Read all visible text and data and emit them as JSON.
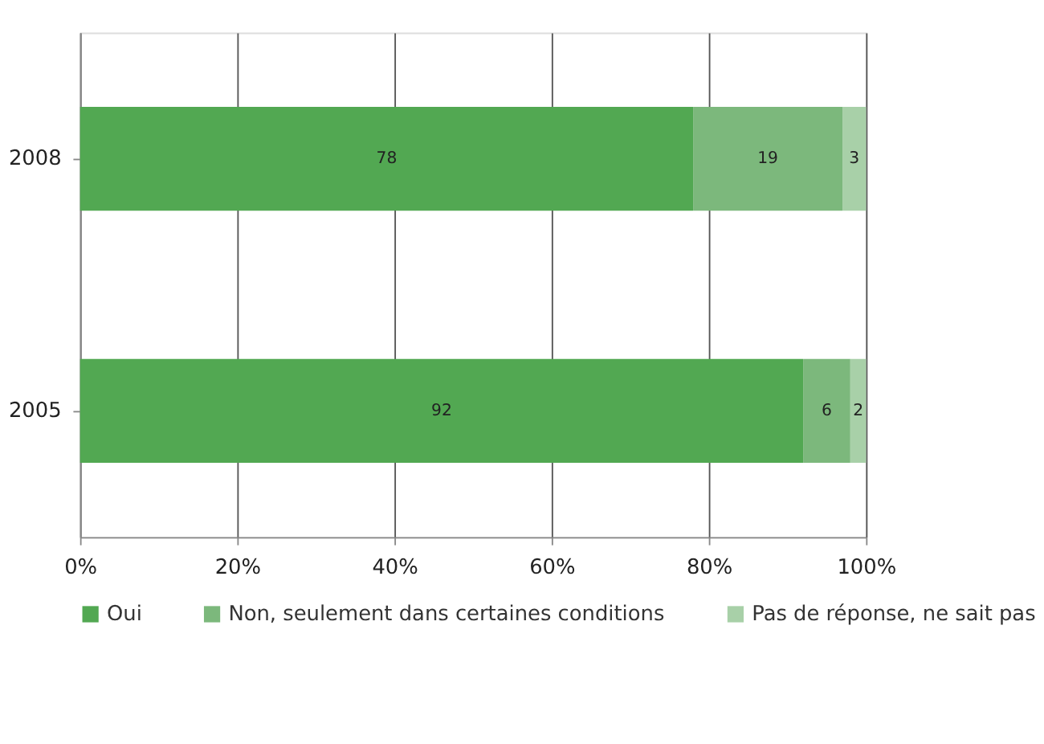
{
  "chart_data": {
    "type": "bar",
    "orientation": "horizontal",
    "stacked": true,
    "data_labels": true,
    "categories": [
      "2008",
      "2005"
    ],
    "series": [
      {
        "name": "Oui",
        "color": "#52a852",
        "values": [
          78,
          92
        ]
      },
      {
        "name": "Non, seulement dans certaines conditions",
        "color": "#7cb87c",
        "values": [
          19,
          6
        ]
      },
      {
        "name": "Pas de réponse, ne sait pas",
        "color": "#a8d0a8",
        "values": [
          3,
          2
        ]
      }
    ],
    "xlim": [
      0,
      100
    ],
    "xticks": [
      {
        "value": 0,
        "label": "0%"
      },
      {
        "value": 20,
        "label": "20%"
      },
      {
        "value": 40,
        "label": "40%"
      },
      {
        "value": 60,
        "label": "60%"
      },
      {
        "value": 80,
        "label": "80%"
      },
      {
        "value": 100,
        "label": "100%"
      }
    ],
    "grid": "x",
    "legend": "bottom"
  }
}
